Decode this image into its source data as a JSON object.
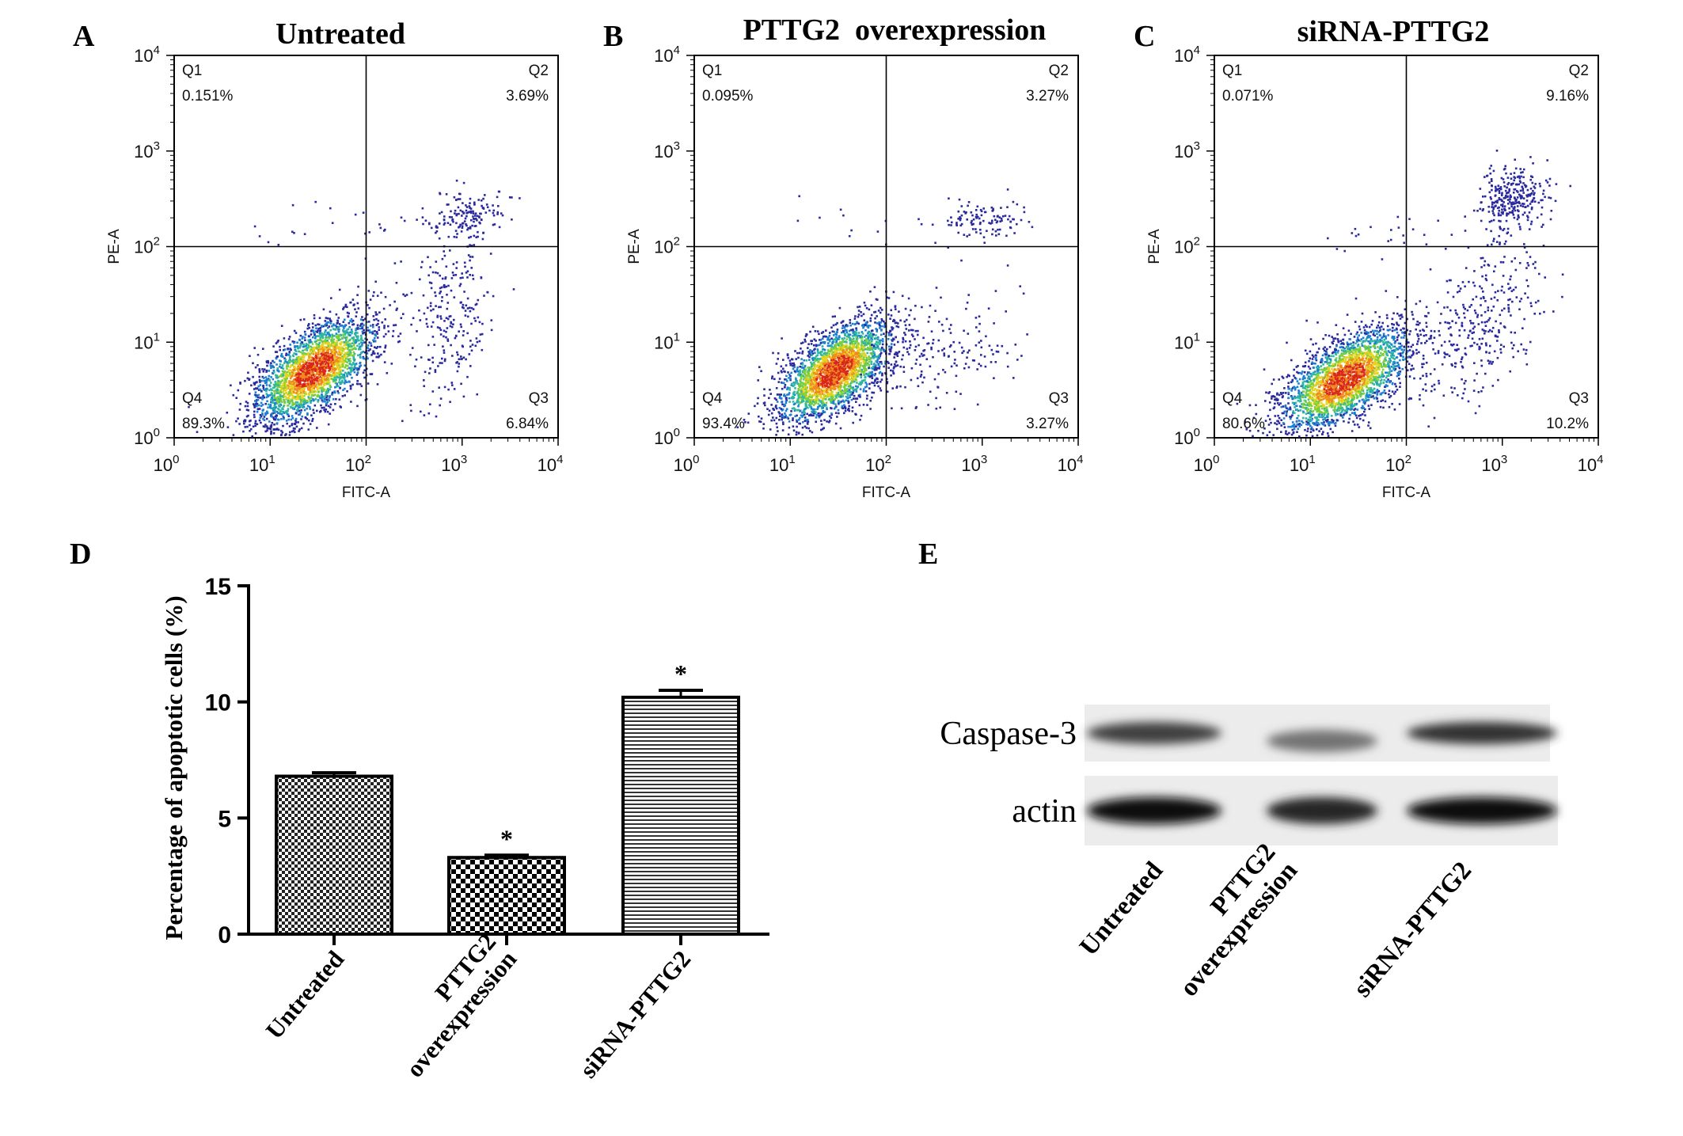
{
  "panels": {
    "A": {
      "letter": "A",
      "title": "Untreated"
    },
    "B": {
      "letter": "B",
      "title": "PTTG2  overexpression"
    },
    "C": {
      "letter": "C",
      "title": "siRNA-PTTG2"
    },
    "D": {
      "letter": "D"
    },
    "E": {
      "letter": "E"
    }
  },
  "flow_cytometry": {
    "x_axis_label": "FITC-A",
    "y_axis_label": "PE-A",
    "tick_base": "10",
    "tick_exponents": [
      "0",
      "1",
      "2",
      "3",
      "4"
    ],
    "gate_log": 2,
    "quadrant_names": [
      "Q1",
      "Q2",
      "Q3",
      "Q4"
    ],
    "point_colors": [
      "#2a2a9e",
      "#1e7fd0",
      "#2fb7a0",
      "#7ccf3a",
      "#e6d321",
      "#f08a1c",
      "#d8261c"
    ],
    "plots": [
      {
        "panel": "A",
        "Q1": "0.151%",
        "Q2": "3.69%",
        "Q3": "6.84%",
        "Q4": "89.3%"
      },
      {
        "panel": "B",
        "Q1": "0.095%",
        "Q2": "3.27%",
        "Q3": "3.27%",
        "Q4": "93.4%"
      },
      {
        "panel": "C",
        "Q1": "0.071%",
        "Q2": "9.16%",
        "Q3": "10.2%",
        "Q4": "80.6%"
      }
    ]
  },
  "chart_data": [
    {
      "type": "bar",
      "panel": "D",
      "ylabel": "Percentage of apoptotic cells (%)",
      "categories": [
        "Untreated",
        "PTTG2\noverexpression",
        "siRNA-PTTG2"
      ],
      "values": [
        6.8,
        3.3,
        10.2
      ],
      "errors": [
        0.15,
        0.1,
        0.3
      ],
      "significance": [
        "",
        "*",
        "*"
      ],
      "ylim": [
        0,
        15
      ],
      "yticks": [
        "0",
        "5",
        "10",
        "15"
      ],
      "bar_patterns": [
        "fine-checker",
        "coarse-checker",
        "horizontal-lines"
      ]
    }
  ],
  "western_blot": {
    "bands": [
      {
        "label": "Caspase-3",
        "intensities": [
          0.75,
          0.55,
          0.8
        ]
      },
      {
        "label": "actin",
        "intensities": [
          0.95,
          0.85,
          0.95
        ]
      }
    ],
    "lanes": [
      "Untreated",
      "PTTG2\noverexpression",
      "siRNA-PTTG2"
    ]
  }
}
